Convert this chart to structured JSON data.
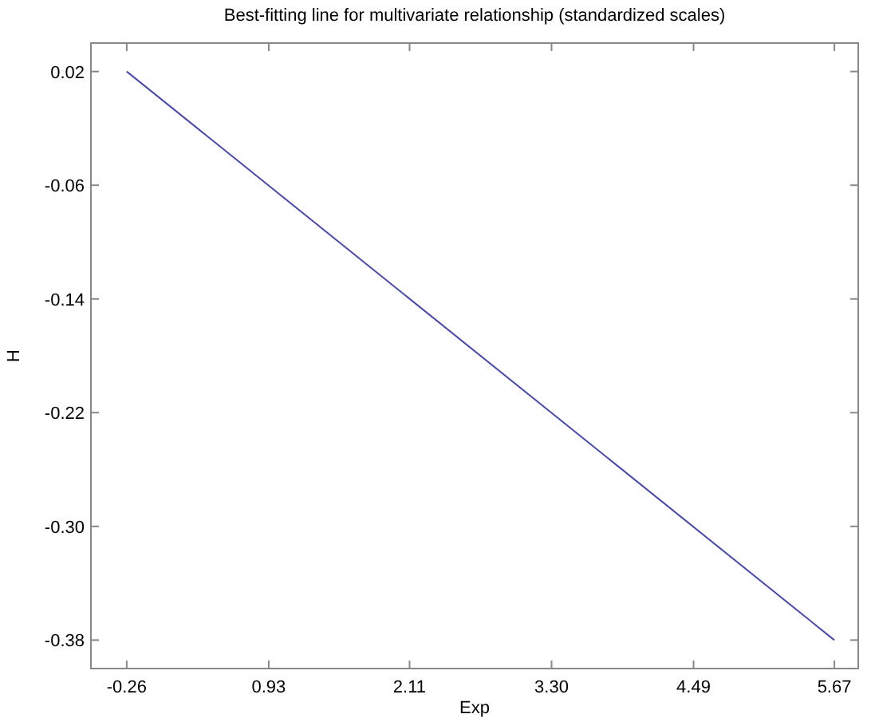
{
  "chart_data": {
    "type": "line",
    "title": "Best-fitting line for multivariate relationship (standardized scales)",
    "xlabel": "Exp",
    "ylabel": "H",
    "x": [
      -0.26,
      5.67
    ],
    "series": [
      {
        "color": "#4a4aa8",
        "values": [
          0.02,
          -0.38
        ]
      }
    ],
    "xlim": [
      -0.56,
      5.87
    ],
    "ylim": [
      -0.4,
      0.04
    ],
    "xticks": [
      -0.26,
      0.93,
      2.11,
      "3.30",
      4.49,
      5.67
    ],
    "yticks": [
      0.02,
      -0.06,
      -0.14,
      -0.22,
      "-0.30",
      -0.38
    ],
    "grid": false,
    "marker": "none",
    "line_style": "solid"
  }
}
